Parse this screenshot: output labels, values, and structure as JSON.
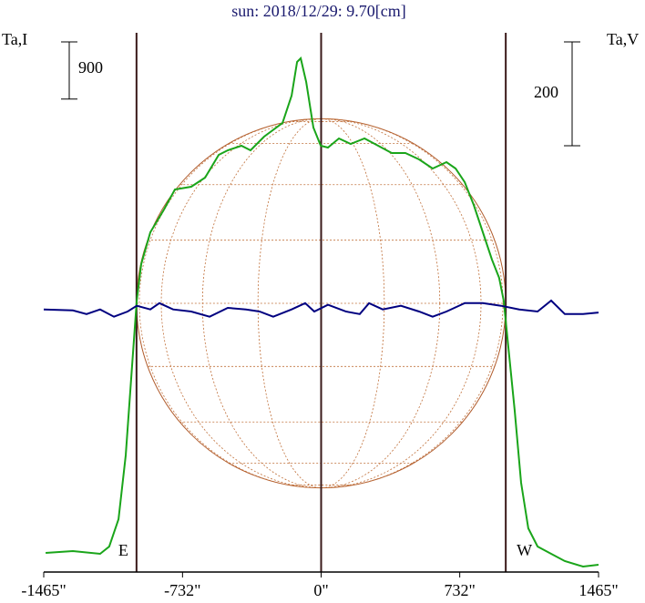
{
  "chart_data": {
    "type": "line",
    "title": "sun: 2018/12/29: 9.70[cm]",
    "ylabel": "Ta,I",
    "y2label": "Ta,V",
    "xticks": [
      {
        "value": -1465,
        "label": "-1465\""
      },
      {
        "value": -732,
        "label": "-732\""
      },
      {
        "value": 0,
        "label": "0\""
      },
      {
        "value": 732,
        "label": "732\""
      },
      {
        "value": 1465,
        "label": "1465\""
      }
    ],
    "xlim": [
      -1465,
      1465
    ],
    "ylim": [
      0,
      8600
    ],
    "y2lim": [
      -504,
      549
    ],
    "scale_bars": {
      "y": 900,
      "y2": 200
    },
    "vlines": [
      -975,
      0,
      975
    ],
    "disk_radius": 975,
    "limb_labels": [
      "E",
      "W"
    ],
    "series": [
      {
        "name": "I",
        "color": "#1aa51a",
        "axis": "y",
        "x": [
          -1455,
          -1311,
          -1167,
          -1119,
          -1070,
          -1032,
          -998,
          -974,
          -950,
          -902,
          -830,
          -772,
          -686,
          -613,
          -541,
          -493,
          -421,
          -373,
          -301,
          -204,
          -156,
          -127,
          -108,
          -79,
          -41,
          -2,
          36,
          94,
          156,
          229,
          301,
          373,
          445,
          517,
          589,
          662,
          710,
          758,
          806,
          854,
          902,
          940,
          964,
          988,
          1022,
          1056,
          1094,
          1143,
          1215,
          1287,
          1383,
          1465
        ],
        "values": [
          301,
          330,
          287,
          401,
          831,
          1835,
          3268,
          4271,
          4845,
          5346,
          5705,
          6020,
          6063,
          6206,
          6565,
          6637,
          6708,
          6637,
          6851,
          7066,
          7496,
          8027,
          8084,
          7711,
          6995,
          6708,
          6679,
          6823,
          6737,
          6823,
          6708,
          6593,
          6593,
          6493,
          6350,
          6450,
          6350,
          6135,
          5776,
          5346,
          4916,
          4630,
          4271,
          3555,
          2551,
          1405,
          688,
          401,
          287,
          172,
          86,
          115
        ]
      },
      {
        "name": "V",
        "color": "#000080",
        "axis": "y2",
        "x": [
          -1465,
          -1311,
          -1239,
          -1167,
          -1094,
          -1022,
          -974,
          -902,
          -854,
          -782,
          -686,
          -589,
          -493,
          -397,
          -325,
          -253,
          -156,
          -84,
          -36,
          36,
          132,
          204,
          253,
          325,
          421,
          517,
          589,
          662,
          758,
          854,
          950,
          1046,
          1143,
          1215,
          1287,
          1383,
          1465
        ],
        "values": [
          2,
          0,
          -7,
          2,
          -12,
          -2,
          9,
          2,
          14,
          2,
          -2,
          -12,
          5,
          2,
          -2,
          -12,
          2,
          14,
          -2,
          11,
          -2,
          -7,
          14,
          2,
          9,
          -2,
          -12,
          -2,
          14,
          14,
          9,
          2,
          -2,
          19,
          -7,
          -7,
          -4
        ]
      }
    ]
  }
}
